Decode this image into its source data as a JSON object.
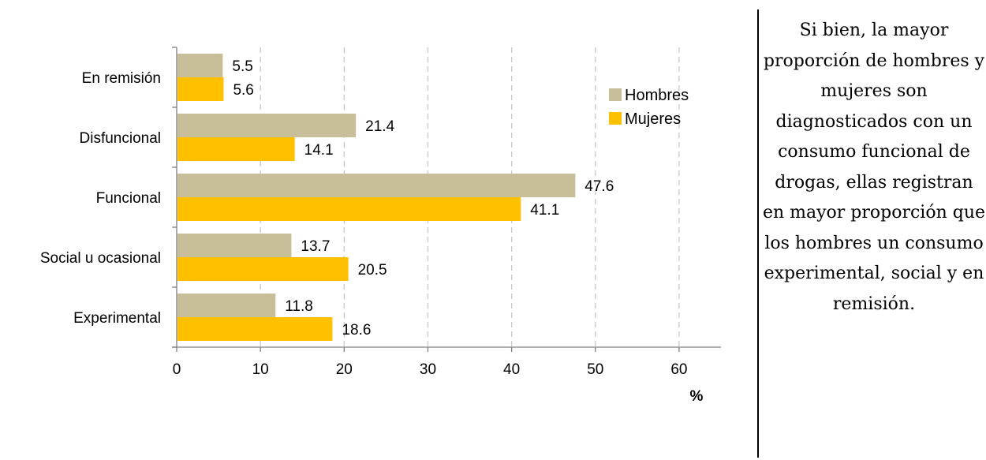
{
  "chart_data": {
    "type": "bar",
    "orientation": "horizontal",
    "categories": [
      "En remisión",
      "Disfuncional",
      "Funcional",
      "Social u ocasional",
      "Experimental"
    ],
    "series": [
      {
        "name": "Hombres",
        "values": [
          5.5,
          21.4,
          47.6,
          13.7,
          11.8
        ],
        "color": "#C8BF9A"
      },
      {
        "name": "Mujeres",
        "values": [
          5.6,
          14.1,
          41.1,
          20.5,
          18.6
        ],
        "color": "#FFC000"
      }
    ],
    "xlabel": "%",
    "xlim": [
      0,
      65
    ],
    "xticks": [
      0,
      10,
      20,
      30,
      40,
      50,
      60
    ],
    "grid": "vertical dashed",
    "legend_position": "top-right"
  },
  "note": {
    "text": "Si bien, la mayor proporción de hombres y mujeres son diagnosticados con un consumo funcional de drogas, ellas registran en mayor proporción que los hombres un consumo experimental, social y en remisión."
  }
}
